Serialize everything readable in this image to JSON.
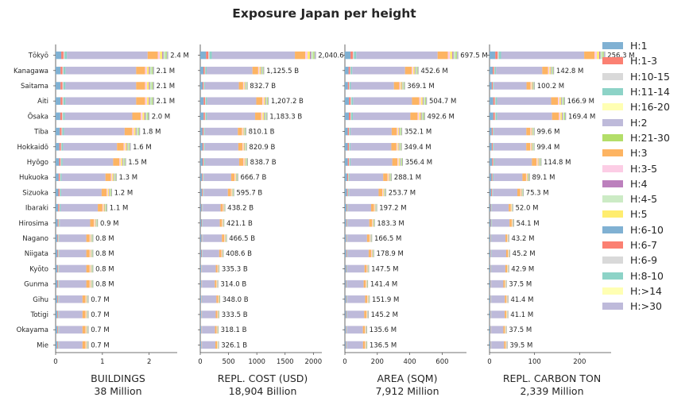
{
  "title": "Exposure Japan per height",
  "legend": [
    {
      "label": "H:1",
      "color": "#80b1d3"
    },
    {
      "label": "H:1-3",
      "color": "#fb8072"
    },
    {
      "label": "H:10-15",
      "color": "#d9d9d9"
    },
    {
      "label": "H:11-14",
      "color": "#8dd3c7"
    },
    {
      "label": "H:16-20",
      "color": "#ffffb3"
    },
    {
      "label": "H:2",
      "color": "#bebada"
    },
    {
      "label": "H:21-30",
      "color": "#b3de69"
    },
    {
      "label": "H:3",
      "color": "#fdb462"
    },
    {
      "label": "H:3-5",
      "color": "#fccde5"
    },
    {
      "label": "H:4",
      "color": "#bc80bd"
    },
    {
      "label": "H:4-5",
      "color": "#ccebc5"
    },
    {
      "label": "H:5",
      "color": "#ffed6f"
    },
    {
      "label": "H:6-10",
      "color": "#80b1d3"
    },
    {
      "label": "H:6-7",
      "color": "#fb8072"
    },
    {
      "label": "H:6-9",
      "color": "#d9d9d9"
    },
    {
      "label": "H:8-10",
      "color": "#8dd3c7"
    },
    {
      "label": "H:>14",
      "color": "#ffffb3"
    },
    {
      "label": "H:>30",
      "color": "#bebada"
    }
  ],
  "chart_data": {
    "type": "bar",
    "orientation": "horizontal",
    "stacked": true,
    "categories": [
      "Tōkyō",
      "Kanagawa",
      "Saitama",
      "Aiti",
      "Ōsaka",
      "Tiba",
      "Hokkaidō",
      "Hyōgo",
      "Hukuoka",
      "Sizuoka",
      "Ibaraki",
      "Hirosima",
      "Nagano",
      "Niigata",
      "Kyōto",
      "Gunma",
      "Gihu",
      "Totigi",
      "Okayama",
      "Mie"
    ],
    "panels": [
      {
        "xlabel": "BUILDINGS",
        "total_label": "38 Million",
        "xlim": [
          0,
          2.6
        ],
        "xticks": [
          0,
          1,
          2
        ],
        "values": [
          2.4,
          2.1,
          2.1,
          2.1,
          2.0,
          1.8,
          1.6,
          1.5,
          1.3,
          1.2,
          1.1,
          0.9,
          0.8,
          0.8,
          0.8,
          0.8,
          0.7,
          0.7,
          0.7,
          0.7
        ],
        "value_labels": [
          "2.4 M",
          "2.1 M",
          "2.1 M",
          "2.1 M",
          "2.0 M",
          "1.8 M",
          "1.6 M",
          "1.5 M",
          "1.3 M",
          "1.2 M",
          "1.1 M",
          "0.9 M",
          "0.8 M",
          "0.8 M",
          "0.8 M",
          "0.8 M",
          "0.7 M",
          "0.7 M",
          "0.7 M",
          "0.7 M"
        ]
      },
      {
        "xlabel": "REPL. COST (USD)",
        "total_label": "18,904 Billion",
        "xlim": [
          0,
          2150
        ],
        "xticks": [
          0,
          500,
          1000,
          1500,
          2000
        ],
        "values": [
          2040.6,
          1125.5,
          832.7,
          1207.2,
          1183.3,
          810.1,
          820.9,
          838.7,
          666.7,
          595.7,
          438.2,
          421.1,
          466.5,
          408.6,
          335.3,
          314.0,
          348.0,
          333.5,
          318.1,
          326.1
        ],
        "value_labels": [
          "2,040.6 B",
          "1,125.5 B",
          "832.7 B",
          "1,207.2 B",
          "1,183.3 B",
          "810.1 B",
          "820.9 B",
          "838.7 B",
          "666.7 B",
          "595.7 B",
          "438.2 B",
          "421.1 B",
          "466.5 B",
          "408.6 B",
          "335.3 B",
          "314.0 B",
          "348.0 B",
          "333.5 B",
          "318.1 B",
          "326.1 B"
        ]
      },
      {
        "xlabel": "AREA (SQM)",
        "total_label": "7,912 Million",
        "xlim": [
          0,
          750
        ],
        "xticks": [
          0,
          200,
          400,
          600
        ],
        "values": [
          697.5,
          452.6,
          369.1,
          504.7,
          492.6,
          352.1,
          349.4,
          356.4,
          288.1,
          253.7,
          197.2,
          183.3,
          166.5,
          178.9,
          147.5,
          141.4,
          151.9,
          145.2,
          135.6,
          136.5
        ],
        "value_labels": [
          "697.5 M",
          "452.6 M",
          "369.1 M",
          "504.7 M",
          "492.6 M",
          "352.1 M",
          "349.4 M",
          "356.4 M",
          "288.1 M",
          "253.7 M",
          "197.2 M",
          "183.3 M",
          "166.5 M",
          "178.9 M",
          "147.5 M",
          "141.4 M",
          "151.9 M",
          "145.2 M",
          "135.6 M",
          "136.5 M"
        ]
      },
      {
        "xlabel": "REPL. CARBON TON",
        "total_label": "2,339 Million",
        "xlim": [
          0,
          270
        ],
        "xticks": [
          0,
          100,
          200
        ],
        "values": [
          256.3,
          142.8,
          100.2,
          166.9,
          169.4,
          99.6,
          99.4,
          114.8,
          89.1,
          75.3,
          52.0,
          54.1,
          43.2,
          45.2,
          42.9,
          37.5,
          41.4,
          41.1,
          37.5,
          39.5
        ],
        "value_labels": [
          "256.3 M",
          "142.8 M",
          "100.2 M",
          "166.9 M",
          "169.4 M",
          "99.6 M",
          "99.4 M",
          "114.8 M",
          "89.1 M",
          "75.3 M",
          "52.0 M",
          "54.1 M",
          "43.2 M",
          "45.2 M",
          "42.9 M",
          "37.5 M",
          "41.4 M",
          "41.1 M",
          "37.5 M",
          "39.5 M"
        ]
      }
    ],
    "segment_shares": [
      {
        "color": "#80b1d3",
        "share": 0.05
      },
      {
        "color": "#fb8072",
        "share": 0.02
      },
      {
        "color": "#d9d9d9",
        "share": 0.01
      },
      {
        "color": "#8dd3c7",
        "share": 0.02
      },
      {
        "color": "#bebada",
        "share": 0.72
      },
      {
        "color": "#fdb462",
        "share": 0.09
      },
      {
        "color": "#fccde5",
        "share": 0.02
      },
      {
        "color": "#ffed6f",
        "share": 0.02
      },
      {
        "color": "#bc80bd",
        "share": 0.01
      },
      {
        "color": "#ccebc5",
        "share": 0.02
      },
      {
        "color": "#b3de69",
        "share": 0.01
      },
      {
        "color": "#bebada",
        "share": 0.01
      }
    ]
  }
}
